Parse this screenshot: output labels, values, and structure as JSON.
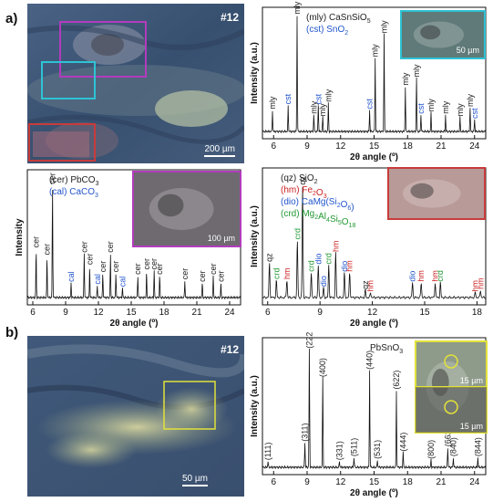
{
  "panels": {
    "a_label": "a)",
    "b_label": "b)"
  },
  "micro_a": {
    "sample_id": "#12",
    "scale": "200 µm",
    "colors": {
      "base": "#3f5678",
      "highlight": "#a9b9a0",
      "magenta": "#b23bbd",
      "cyan": "#2ec3d4",
      "red": "#c83b3b"
    }
  },
  "micro_b": {
    "sample_id": "#12",
    "scale": "50 µm",
    "colors": {
      "base": "#3c5271",
      "highlight": "#dcd89a",
      "yellow": "#e2e23a"
    }
  },
  "chart_data": [
    {
      "type": "line",
      "id": "top_right",
      "ylabel": "Intensity (a.u.)",
      "xlabel": "2θ angle (º)",
      "xlim": [
        5,
        25
      ],
      "xticks": [
        6,
        9,
        12,
        15,
        18,
        21,
        24
      ],
      "legend": [
        {
          "text": "(mly) CaSnSiO",
          "sub": "5",
          "color": "#222222"
        },
        {
          "text": "(cst) SnO",
          "sub": "2",
          "color": "#2255cc"
        }
      ],
      "inset_scale": "50 µm",
      "peaks": [
        {
          "x": 5.9,
          "h": 0.18,
          "label": "mly",
          "color": "#222222"
        },
        {
          "x": 7.3,
          "h": 0.22,
          "label": "cst",
          "color": "#2255cc"
        },
        {
          "x": 8.1,
          "h": 0.98,
          "label": "mly",
          "color": "#222222"
        },
        {
          "x": 9.6,
          "h": 0.14,
          "label": "mly",
          "color": "#222222"
        },
        {
          "x": 10.0,
          "h": 0.22,
          "label": "cst",
          "color": "#2255cc"
        },
        {
          "x": 10.4,
          "h": 0.12,
          "label": "mly",
          "color": "#222222"
        },
        {
          "x": 10.9,
          "h": 0.24,
          "label": "mly",
          "color": "#222222"
        },
        {
          "x": 14.6,
          "h": 0.18,
          "label": "cst",
          "color": "#2255cc"
        },
        {
          "x": 15.1,
          "h": 0.62,
          "label": "mly",
          "color": "#222222"
        },
        {
          "x": 15.9,
          "h": 0.82,
          "label": "mly",
          "color": "#222222"
        },
        {
          "x": 17.8,
          "h": 0.38,
          "label": "mly",
          "color": "#222222"
        },
        {
          "x": 18.8,
          "h": 0.45,
          "label": "mly",
          "color": "#222222"
        },
        {
          "x": 19.2,
          "h": 0.14,
          "label": "cst",
          "color": "#2255cc"
        },
        {
          "x": 20.1,
          "h": 0.16,
          "label": "mly",
          "color": "#222222"
        },
        {
          "x": 21.4,
          "h": 0.14,
          "label": "mly",
          "color": "#222222"
        },
        {
          "x": 22.7,
          "h": 0.12,
          "label": "mly",
          "color": "#222222"
        },
        {
          "x": 23.6,
          "h": 0.2,
          "label": "mly",
          "color": "#222222"
        },
        {
          "x": 24.0,
          "h": 0.1,
          "label": "cst",
          "color": "#2255cc"
        }
      ]
    },
    {
      "type": "line",
      "id": "middle_left",
      "ylabel": "Intensity",
      "xlabel": "2θ angle (º)",
      "xlim": [
        5.5,
        25
      ],
      "xticks": [
        6,
        9,
        12,
        15,
        18,
        21,
        24
      ],
      "legend": [
        {
          "text": "(cer) PbCO",
          "sub": "3",
          "color": "#222222"
        },
        {
          "text": "(cal) CaCO",
          "sub": "3",
          "color": "#2255cc"
        }
      ],
      "inset_scale": "100 µm",
      "peaks": [
        {
          "x": 6.3,
          "h": 0.4,
          "label": "cer",
          "color": "#222222"
        },
        {
          "x": 7.3,
          "h": 0.34,
          "label": "cer",
          "color": "#222222"
        },
        {
          "x": 7.8,
          "h": 0.92,
          "label": "cer",
          "color": "#222222"
        },
        {
          "x": 9.5,
          "h": 0.12,
          "label": "cal",
          "color": "#2255cc"
        },
        {
          "x": 10.7,
          "h": 0.36,
          "label": "cer",
          "color": "#222222"
        },
        {
          "x": 11.2,
          "h": 0.26,
          "label": "cer",
          "color": "#222222"
        },
        {
          "x": 11.9,
          "h": 0.1,
          "label": "cal",
          "color": "#2255cc"
        },
        {
          "x": 12.4,
          "h": 0.2,
          "label": "cer",
          "color": "#222222"
        },
        {
          "x": 13.1,
          "h": 0.36,
          "label": "cer",
          "color": "#222222"
        },
        {
          "x": 13.6,
          "h": 0.2,
          "label": "cer",
          "color": "#222222"
        },
        {
          "x": 14.2,
          "h": 0.08,
          "label": "cal",
          "color": "#2255cc"
        },
        {
          "x": 15.6,
          "h": 0.18,
          "label": "cer",
          "color": "#222222"
        },
        {
          "x": 16.4,
          "h": 0.22,
          "label": "cer",
          "color": "#222222"
        },
        {
          "x": 17.1,
          "h": 0.22,
          "label": "cer",
          "color": "#222222"
        },
        {
          "x": 17.6,
          "h": 0.18,
          "label": "cer",
          "color": "#222222"
        },
        {
          "x": 19.9,
          "h": 0.14,
          "label": "cer",
          "color": "#222222"
        },
        {
          "x": 21.5,
          "h": 0.12,
          "label": "cer",
          "color": "#222222"
        },
        {
          "x": 22.5,
          "h": 0.18,
          "label": "cer",
          "color": "#222222"
        },
        {
          "x": 23.2,
          "h": 0.12,
          "label": "cer",
          "color": "#222222"
        }
      ]
    },
    {
      "type": "line",
      "id": "middle_right",
      "ylabel": "Intensity (a.u.)",
      "xlabel": "2θ angle (º)",
      "xlim": [
        5.7,
        18.5
      ],
      "xticks": [
        6,
        9,
        12,
        15,
        18
      ],
      "legend": [
        {
          "text": "(qz) SiO",
          "sub": "2",
          "color": "#222222"
        },
        {
          "text": "(hm) Fe",
          "sub": "2",
          "tail": "O",
          "sub2": "3",
          "color": "#cc2222"
        },
        {
          "text": "(dio) CaMg(Si",
          "sub": "2",
          "tail": "O",
          "sub2": "6",
          "tail2": ")",
          "color": "#2255cc"
        },
        {
          "text": "(crd) Mg",
          "sub": "2",
          "tail": "Al",
          "sub2": "4",
          "tail2": "Si",
          "sub3": "5",
          "tail3": "O",
          "sub4": "18",
          "color": "#229933"
        }
      ],
      "peaks": [
        {
          "x": 6.1,
          "h": 0.28,
          "label": "qz",
          "color": "#222222"
        },
        {
          "x": 6.5,
          "h": 0.14,
          "label": "crd",
          "color": "#229933"
        },
        {
          "x": 7.1,
          "h": 0.14,
          "label": "hm",
          "color": "#cc2222"
        },
        {
          "x": 8.0,
          "h": 0.9,
          "label": "qz",
          "color": "#222222"
        },
        {
          "x": 7.7,
          "h": 0.46,
          "label": "crd",
          "color": "#229933"
        },
        {
          "x": 8.5,
          "h": 0.2,
          "label": "crd",
          "color": "#229933"
        },
        {
          "x": 8.9,
          "h": 0.26,
          "label": "dio",
          "color": "#2255cc"
        },
        {
          "x": 9.2,
          "h": 0.08,
          "label": "dio",
          "color": "#2255cc"
        },
        {
          "x": 9.5,
          "h": 0.26,
          "label": "crd",
          "color": "#229933"
        },
        {
          "x": 9.9,
          "h": 0.36,
          "label": "hm",
          "color": "#cc2222"
        },
        {
          "x": 10.4,
          "h": 0.2,
          "label": "dio",
          "color": "#2255cc"
        },
        {
          "x": 10.7,
          "h": 0.2,
          "label": "hm",
          "color": "#cc2222"
        },
        {
          "x": 11.6,
          "h": 0.06,
          "label": "qz",
          "color": "#222222"
        },
        {
          "x": 11.9,
          "h": 0.04,
          "label": "hm",
          "color": "#cc2222"
        },
        {
          "x": 14.3,
          "h": 0.12,
          "label": "dio",
          "color": "#2255cc"
        },
        {
          "x": 14.8,
          "h": 0.12,
          "label": "hm",
          "color": "#cc2222"
        },
        {
          "x": 15.6,
          "h": 0.12,
          "label": "hm",
          "color": "#cc2222"
        },
        {
          "x": 15.9,
          "h": 0.12,
          "label": "crd",
          "color": "#229933"
        },
        {
          "x": 17.9,
          "h": 0.04,
          "label": "hm",
          "color": "#cc2222"
        },
        {
          "x": 18.2,
          "h": 0.06,
          "label": "hm",
          "color": "#cc2222"
        }
      ]
    },
    {
      "type": "line",
      "id": "bottom_right",
      "ylabel": "Intensity (a.u.)",
      "xlabel": "2θ angle (º)",
      "xlim": [
        5,
        25
      ],
      "xticks": [
        6,
        9,
        12,
        15,
        18,
        21,
        24
      ],
      "legend": [
        {
          "text": "PbSnO",
          "sub": "3",
          "color": "#222222"
        }
      ],
      "inset_scales": [
        "15 µm",
        "15 µm"
      ],
      "peaks": [
        {
          "x": 5.5,
          "h": 0.05,
          "label": "(111)",
          "color": "#222222"
        },
        {
          "x": 8.8,
          "h": 0.2,
          "label": "(311)",
          "color": "#222222"
        },
        {
          "x": 9.2,
          "h": 0.95,
          "label": "(222)",
          "color": "#222222"
        },
        {
          "x": 10.4,
          "h": 0.72,
          "label": "(400)",
          "color": "#222222"
        },
        {
          "x": 11.9,
          "h": 0.05,
          "label": "(331)",
          "color": "#222222"
        },
        {
          "x": 13.2,
          "h": 0.08,
          "label": "(511)",
          "color": "#222222"
        },
        {
          "x": 14.6,
          "h": 0.78,
          "label": "(440)",
          "color": "#222222"
        },
        {
          "x": 15.3,
          "h": 0.06,
          "label": "(531)",
          "color": "#222222"
        },
        {
          "x": 17.0,
          "h": 0.62,
          "label": "(622)",
          "color": "#222222"
        },
        {
          "x": 17.6,
          "h": 0.12,
          "label": "(444)",
          "color": "#222222"
        },
        {
          "x": 20.1,
          "h": 0.06,
          "label": "(800)",
          "color": "#222222"
        },
        {
          "x": 21.6,
          "h": 0.16,
          "label": "(662)",
          "color": "#222222"
        },
        {
          "x": 22.1,
          "h": 0.08,
          "label": "(840)",
          "color": "#222222"
        },
        {
          "x": 24.3,
          "h": 0.08,
          "label": "(844)",
          "color": "#222222"
        }
      ]
    }
  ]
}
